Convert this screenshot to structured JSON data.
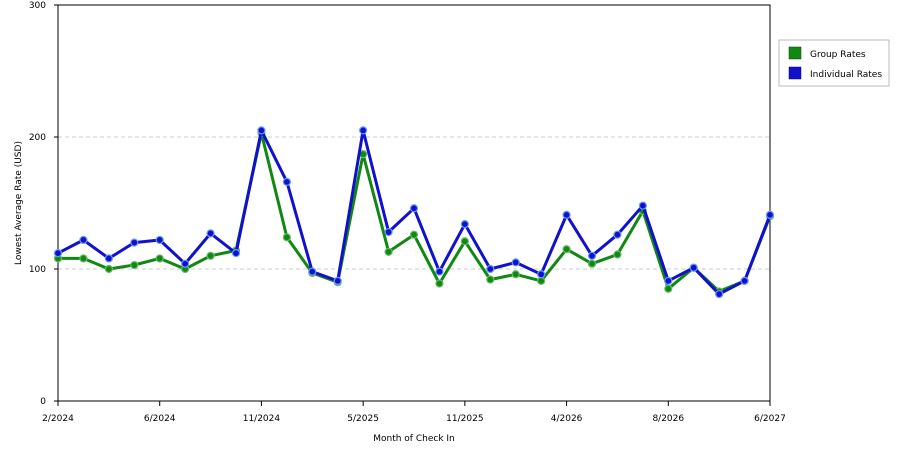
{
  "chart_data": {
    "type": "line",
    "title": "",
    "xlabel": "Month of Check In",
    "ylabel": "Lowest Average Rate (USD)",
    "ylim": [
      0,
      300
    ],
    "yticks": [
      0,
      100,
      200,
      300
    ],
    "grid": "horizontal dashed at 100 and 200",
    "legend_placement": "right",
    "x_tick_labels": [
      {
        "i": 0,
        "label": "2/2024"
      },
      {
        "i": 4,
        "label": "6/2024"
      },
      {
        "i": 8,
        "label": "11/2024"
      },
      {
        "i": 12,
        "label": "5/2025"
      },
      {
        "i": 16,
        "label": "11/2025"
      },
      {
        "i": 20,
        "label": "4/2026"
      },
      {
        "i": 24,
        "label": "8/2026"
      },
      {
        "i": 28,
        "label": "6/2027"
      }
    ],
    "point_count": 29,
    "series": [
      {
        "name": "Group Rates",
        "color": "#118811",
        "values": [
          108,
          108,
          100,
          103,
          108,
          100,
          110,
          114,
          203,
          124,
          97,
          90,
          187,
          113,
          126,
          89,
          121,
          92,
          96,
          91,
          115,
          104,
          111,
          144,
          85,
          101,
          83,
          91,
          140
        ]
      },
      {
        "name": "Individual Rates",
        "color": "#1111cc",
        "values": [
          112,
          122,
          108,
          120,
          122,
          104,
          127,
          112,
          205,
          166,
          98,
          91,
          205,
          128,
          146,
          98,
          134,
          100,
          105,
          96,
          141,
          110,
          126,
          148,
          91,
          101,
          81,
          91,
          141
        ]
      }
    ]
  }
}
